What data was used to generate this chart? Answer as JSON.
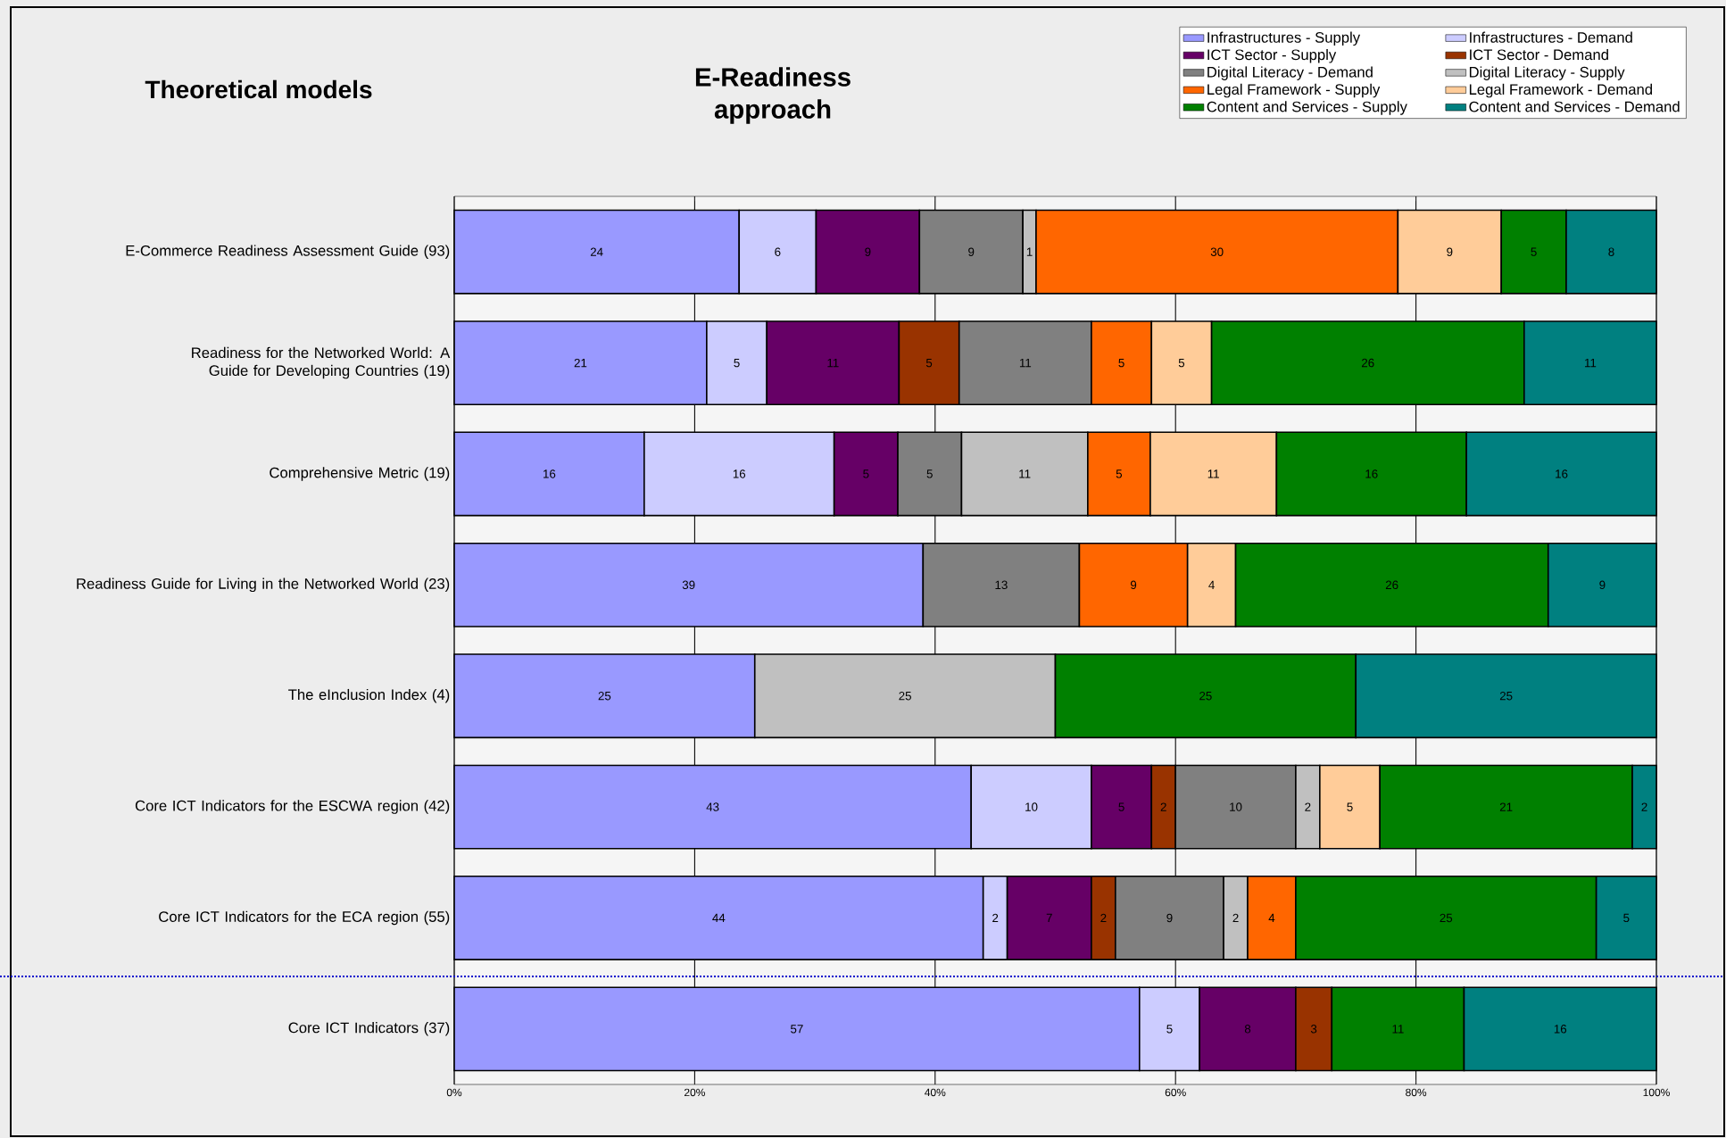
{
  "chart_data": {
    "type": "bar",
    "orientation": "horizontal",
    "stacked": true,
    "title": "E-Readiness approach",
    "subtitle": "Theoretical models",
    "categories": [
      "E-Commerce Readiness Assessment Guide (93)",
      "Readiness for the Networked World: A Guide for Developing Countries (19)",
      "Comprehensive Metric (19)",
      "Readiness Guide for Living in the Networked World (23)",
      "The eInclusion Index (4)",
      "Core ICT Indicators for the ESCWA region (42)",
      "Core ICT Indicators for the ECA region (55)",
      "Core ICT Indicators (37)"
    ],
    "series": [
      {
        "name": "Infrastructures - Supply",
        "color": "#9999ff",
        "values": [
          23.7,
          21,
          15.8,
          39,
          25,
          43,
          44,
          57
        ],
        "value_labels": [
          "24",
          "21",
          "16",
          "39",
          "25",
          "43",
          "44",
          "57"
        ]
      },
      {
        "name": "Infrastructures - Demand",
        "color": "#ccccff",
        "values": [
          6.4,
          5,
          15.8,
          null,
          null,
          10,
          2,
          5
        ],
        "value_labels": [
          "6",
          "5",
          "16",
          null,
          null,
          "10",
          "2",
          "5"
        ]
      },
      {
        "name": "ICT Sector - Supply",
        "color": "#660066",
        "values": [
          8.6,
          11,
          5.3,
          null,
          null,
          5,
          7,
          8
        ],
        "value_labels": [
          "9",
          "11",
          "5",
          null,
          null,
          "5",
          "7",
          "8"
        ]
      },
      {
        "name": "ICT Sector - Demand",
        "color": "#993300",
        "values": [
          null,
          5,
          null,
          null,
          null,
          2,
          2,
          3
        ],
        "value_labels": [
          null,
          "5",
          null,
          null,
          null,
          "2",
          "2",
          "3"
        ]
      },
      {
        "name": "Digital Literacy - Demand",
        "color": "#808080",
        "values": [
          8.6,
          11,
          5.3,
          13,
          null,
          10,
          9,
          null
        ],
        "value_labels": [
          "9",
          "11",
          "5",
          "13",
          null,
          "10",
          "9",
          null
        ]
      },
      {
        "name": "Digital Literacy - Supply",
        "color": "#c0c0c0",
        "values": [
          1.1,
          null,
          10.5,
          null,
          25,
          2,
          2,
          null
        ],
        "value_labels": [
          "1",
          null,
          "11",
          null,
          "25",
          "2",
          "2",
          null
        ]
      },
      {
        "name": "Legal Framework - Supply",
        "color": "#ff6600",
        "values": [
          30.1,
          5,
          5.2,
          9,
          null,
          null,
          4,
          null
        ],
        "value_labels": [
          "30",
          "5",
          "5",
          "9",
          null,
          null,
          "4",
          null
        ]
      },
      {
        "name": "Legal Framework - Demand",
        "color": "#ffcc99",
        "values": [
          8.6,
          5,
          10.5,
          4,
          null,
          5,
          null,
          null
        ],
        "value_labels": [
          "9",
          "5",
          "11",
          "4",
          null,
          "5",
          null,
          null
        ]
      },
      {
        "name": "Content and Services - Supply",
        "color": "#008000",
        "values": [
          5.4,
          26,
          15.8,
          26,
          25,
          21,
          25,
          11
        ],
        "value_labels": [
          "5",
          "26",
          "16",
          "26",
          "25",
          "21",
          "25",
          "11"
        ]
      },
      {
        "name": "Content and Services - Demand",
        "color": "#008080",
        "values": [
          7.5,
          11,
          15.8,
          9,
          25,
          2,
          5,
          16
        ],
        "value_labels": [
          "8",
          "11",
          "16",
          "9",
          "25",
          "2",
          "5",
          "16"
        ]
      }
    ],
    "xlim": [
      0,
      100
    ],
    "xticks": [
      {
        "value": 0,
        "label": "0%"
      },
      {
        "value": 20,
        "label": "20%"
      },
      {
        "value": 40,
        "label": "40%"
      },
      {
        "value": 60,
        "label": "60%"
      },
      {
        "value": 80,
        "label": "80%"
      },
      {
        "value": 100,
        "label": "100%"
      }
    ],
    "grid": "x",
    "legend": "top right"
  }
}
